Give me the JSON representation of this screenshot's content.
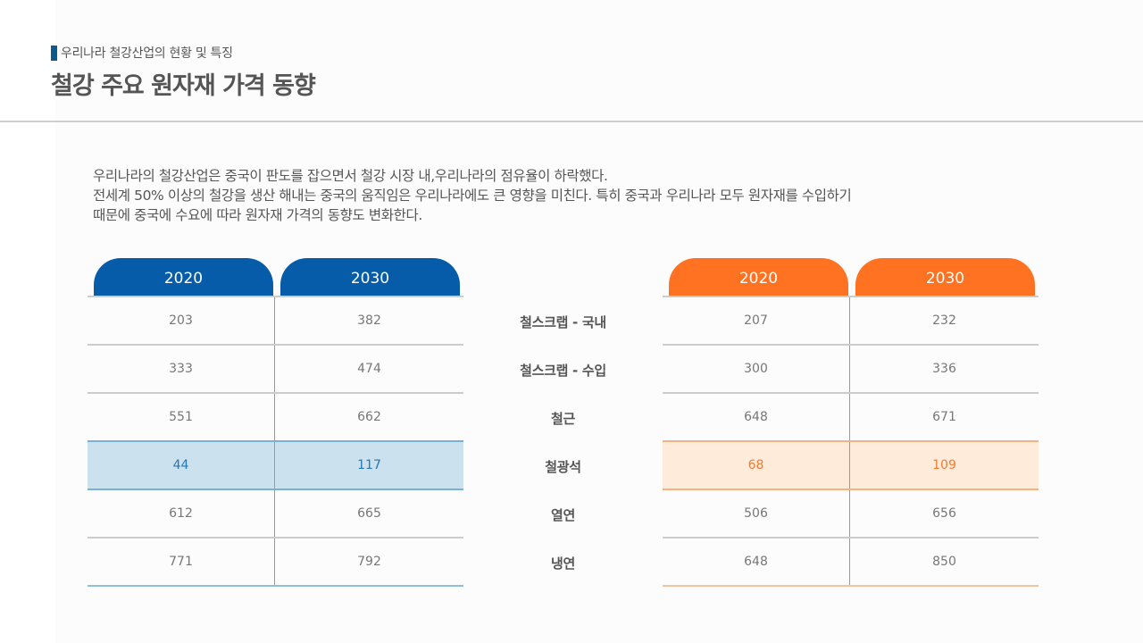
{
  "header": {
    "subtitle": "우리나라 철강산업의 현황 및 특징",
    "title": "철강 주요 원자재 가격 동향",
    "accent_color": "#0a5a8c"
  },
  "description": {
    "lines": [
      "우리나라의 철강산업은 중국이 판도를 잡으면서 철강 시장 내,우리나라의 점유율이 하락했다.",
      "전세계 50% 이상의 철강을 생산 해내는 중국의 움직임은 우리나라에도 큰 영향을 미친다. 특히 중국과 우리나라 모두 원자재를 수입하기",
      "때문에 중국에 수요에 따라 원자재 가격의 동향도 변화한다."
    ]
  },
  "categories": [
    "철스크랩 - 국내",
    "철스크랩 - 수입",
    "철근",
    "철광석",
    "열연",
    "냉연"
  ],
  "left_table": {
    "color": "#065ca9",
    "highlight_color": "#cbe2ee",
    "headers": [
      "2020",
      "2030"
    ],
    "highlight_row": 3,
    "rows": [
      [
        "203",
        "382"
      ],
      [
        "333",
        "474"
      ],
      [
        "551",
        "662"
      ],
      [
        "44",
        "117"
      ],
      [
        "612",
        "665"
      ],
      [
        "771",
        "792"
      ]
    ]
  },
  "right_table": {
    "color": "#fe7222",
    "highlight_color": "#ffebda",
    "headers": [
      "2020",
      "2030"
    ],
    "highlight_row": 3,
    "rows": [
      [
        "207",
        "232"
      ],
      [
        "300",
        "336"
      ],
      [
        "648",
        "671"
      ],
      [
        "68",
        "109"
      ],
      [
        "506",
        "656"
      ],
      [
        "648",
        "850"
      ]
    ]
  }
}
